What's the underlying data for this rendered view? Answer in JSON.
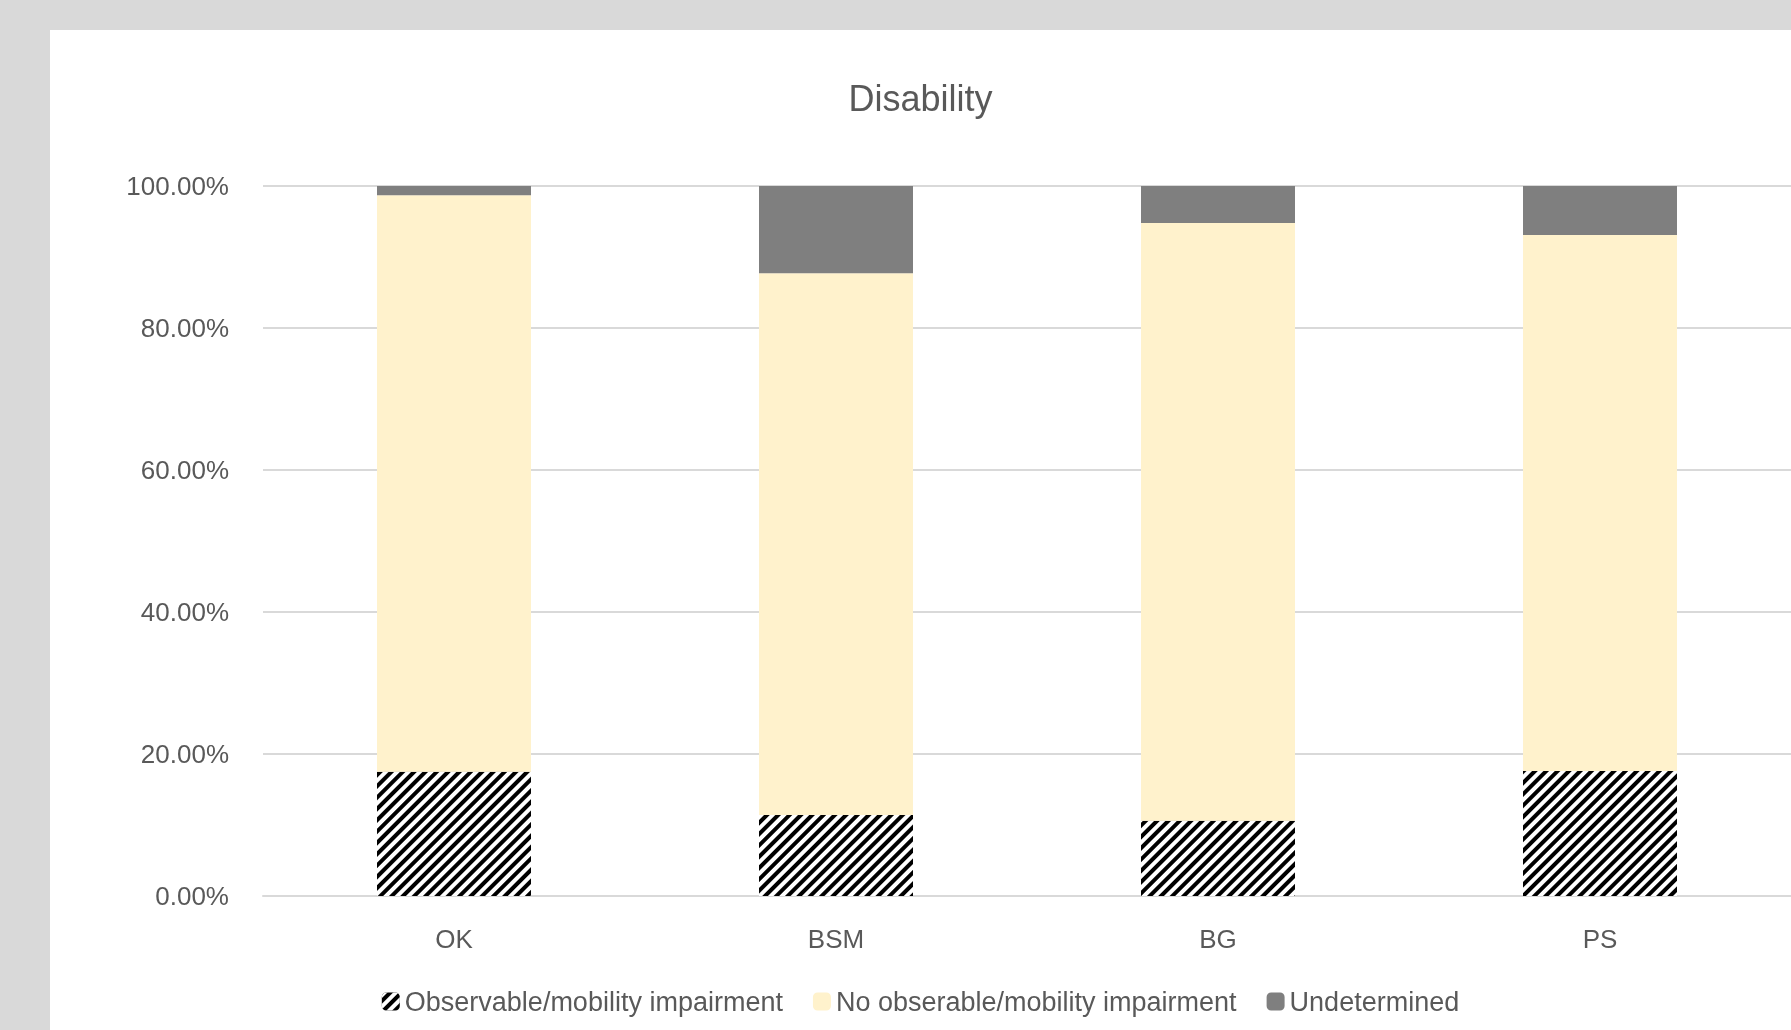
{
  "chart_data": {
    "type": "bar",
    "title": "Disability",
    "categories": [
      "OK",
      "BSM",
      "BG",
      "PS"
    ],
    "stacked": true,
    "series": [
      {
        "name": "Observable/mobility impairment",
        "color": "#000000",
        "values": [
          17.5,
          11.4,
          10.6,
          17.6
        ]
      },
      {
        "name": "No obserable/mobility impairment",
        "color": "#fff2cc",
        "values": [
          81.2,
          76.3,
          84.2,
          75.5
        ]
      },
      {
        "name": "Undetermined",
        "color": "#7f7f7f",
        "values": [
          1.3,
          12.3,
          5.2,
          6.9
        ]
      }
    ],
    "ylim": [
      0,
      100
    ],
    "yticks": [
      {
        "value": 0,
        "label": "0.00%"
      },
      {
        "value": 20,
        "label": "20.00%"
      },
      {
        "value": 40,
        "label": "40.00%"
      },
      {
        "value": 60,
        "label": "60.00%"
      },
      {
        "value": 80,
        "label": "80.00%"
      },
      {
        "value": 100,
        "label": "100.00%"
      }
    ],
    "grid": "y",
    "legend": "bottom"
  }
}
